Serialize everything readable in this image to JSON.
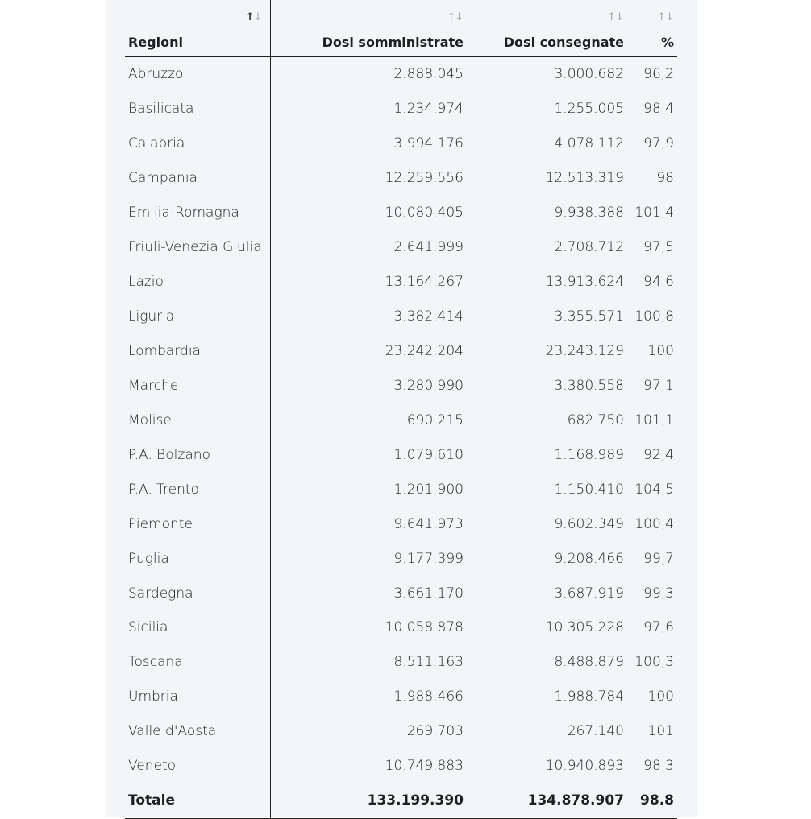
{
  "table": {
    "headers": {
      "region": "Regioni",
      "somministrate": "Dosi somministrate",
      "consegnate": "Dosi consegnate",
      "pct": "%"
    },
    "sort_icons": {
      "up": "↑",
      "down": "↓"
    },
    "rows": [
      {
        "region": "Abruzzo",
        "somministrate": "2.888.045",
        "consegnate": "3.000.682",
        "pct": "96,2"
      },
      {
        "region": "Basilicata",
        "somministrate": "1.234.974",
        "consegnate": "1.255.005",
        "pct": "98,4"
      },
      {
        "region": "Calabria",
        "somministrate": "3.994.176",
        "consegnate": "4.078.112",
        "pct": "97,9"
      },
      {
        "region": "Campania",
        "somministrate": "12.259.556",
        "consegnate": "12.513.319",
        "pct": "98"
      },
      {
        "region": "Emilia-Romagna",
        "somministrate": "10.080.405",
        "consegnate": "9.938.388",
        "pct": "101,4"
      },
      {
        "region": "Friuli-Venezia Giulia",
        "somministrate": "2.641.999",
        "consegnate": "2.708.712",
        "pct": "97,5"
      },
      {
        "region": "Lazio",
        "somministrate": "13.164.267",
        "consegnate": "13.913.624",
        "pct": "94,6"
      },
      {
        "region": "Liguria",
        "somministrate": "3.382.414",
        "consegnate": "3.355.571",
        "pct": "100,8"
      },
      {
        "region": "Lombardia",
        "somministrate": "23.242.204",
        "consegnate": "23.243.129",
        "pct": "100"
      },
      {
        "region": "Marche",
        "somministrate": "3.280.990",
        "consegnate": "3.380.558",
        "pct": "97,1"
      },
      {
        "region": "Molise",
        "somministrate": "690.215",
        "consegnate": "682.750",
        "pct": "101,1"
      },
      {
        "region": "P.A. Bolzano",
        "somministrate": "1.079.610",
        "consegnate": "1.168.989",
        "pct": "92,4"
      },
      {
        "region": "P.A. Trento",
        "somministrate": "1.201.900",
        "consegnate": "1.150.410",
        "pct": "104,5"
      },
      {
        "region": "Piemonte",
        "somministrate": "9.641.973",
        "consegnate": "9.602.349",
        "pct": "100,4"
      },
      {
        "region": "Puglia",
        "somministrate": "9.177.399",
        "consegnate": "9.208.466",
        "pct": "99,7"
      },
      {
        "region": "Sardegna",
        "somministrate": "3.661.170",
        "consegnate": "3.687.919",
        "pct": "99,3"
      },
      {
        "region": "Sicilia",
        "somministrate": "10.058.878",
        "consegnate": "10.305.228",
        "pct": "97,6"
      },
      {
        "region": "Toscana",
        "somministrate": "8.511.163",
        "consegnate": "8.488.879",
        "pct": "100,3"
      },
      {
        "region": "Umbria",
        "somministrate": "1.988.466",
        "consegnate": "1.988.784",
        "pct": "100"
      },
      {
        "region": "Valle d'Aosta",
        "somministrate": "269.703",
        "consegnate": "267.140",
        "pct": "101"
      },
      {
        "region": "Veneto",
        "somministrate": "10.749.883",
        "consegnate": "10.940.893",
        "pct": "98,3"
      }
    ],
    "total": {
      "region": "Totale",
      "somministrate": "133.199.390",
      "consegnate": "134.878.907",
      "pct": "98.8"
    }
  }
}
